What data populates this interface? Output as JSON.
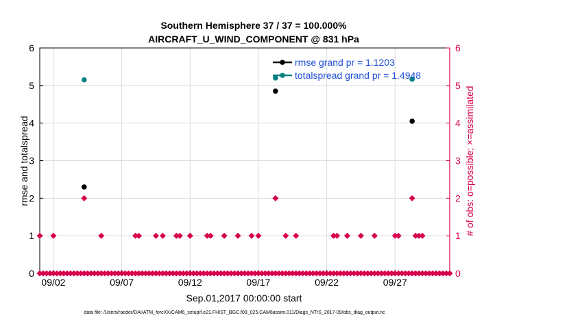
{
  "colors": {
    "rmse": "#000000",
    "totalspread": "#008080",
    "obs": "#d6004e",
    "grid": "#dcdcdc",
    "legend_text": "#1f4fd8"
  },
  "chart_data": {
    "type": "scatter",
    "title_line1": "Southern Hemisphere 37 / 37 = 100.000%",
    "title_line2": "AIRCRAFT_U_WIND_COMPONENT @ 831 hPa",
    "xlabel": "Sep.01,2017 00:00:00 start",
    "ylabel_left": "rmse and totalspread",
    "ylabel_right": "# of obs: o=possible; ×=assimilated",
    "footer": "data file: /Users/raeder/DAI/ATM_forcXX/CAM6_setup/f.e21.FHIST_BGC.f09_025.CAM6assim.011/Diags_NTrS_2017-09/obs_diag_output.nc",
    "xlim": [
      1.0,
      31.0
    ],
    "ylim_left": [
      0,
      6
    ],
    "ylim_right": [
      0,
      6
    ],
    "xticks": [
      {
        "value": 2,
        "label": "09/02"
      },
      {
        "value": 7,
        "label": "09/07"
      },
      {
        "value": 12,
        "label": "09/12"
      },
      {
        "value": 17,
        "label": "09/17"
      },
      {
        "value": 22,
        "label": "09/22"
      },
      {
        "value": 27,
        "label": "09/27"
      }
    ],
    "yticks_left": [
      "0",
      "1",
      "2",
      "3",
      "4",
      "5",
      "6"
    ],
    "yticks_right": [
      "0",
      "1",
      "2",
      "3",
      "4",
      "5",
      "6"
    ],
    "legend": [
      {
        "name": "rmse grand pr = 1.1203",
        "series": "rmse"
      },
      {
        "name": "totalspread grand pr = 1.4948",
        "series": "totalspread"
      }
    ],
    "series": [
      {
        "name": "rmse",
        "x": [
          4.25,
          18.25,
          28.25
        ],
        "y": [
          2.3,
          4.85,
          4.05
        ]
      },
      {
        "name": "totalspread",
        "x": [
          4.25,
          18.25,
          28.25
        ],
        "y": [
          5.15,
          5.2,
          5.17
        ]
      },
      {
        "name": "obs_nonzero",
        "x": [
          1.0,
          2.0,
          4.25,
          5.5,
          8.0,
          8.25,
          9.5,
          10.0,
          11.0,
          11.25,
          12.0,
          13.25,
          13.5,
          14.5,
          15.5,
          16.5,
          17.0,
          18.25,
          19.0,
          19.75,
          22.5,
          22.75,
          23.5,
          24.5,
          25.5,
          27.0,
          27.25,
          28.25,
          28.5,
          28.75,
          29.0
        ],
        "y": [
          1,
          1,
          2,
          1,
          1,
          1,
          1,
          1,
          1,
          1,
          1,
          1,
          1,
          1,
          1,
          1,
          1,
          2,
          1,
          1,
          1,
          1,
          1,
          1,
          1,
          1,
          1,
          2,
          1,
          1,
          1
        ]
      }
    ],
    "obs_zero_range": {
      "start": 1.0,
      "end": 31.0,
      "step": 0.25
    }
  }
}
